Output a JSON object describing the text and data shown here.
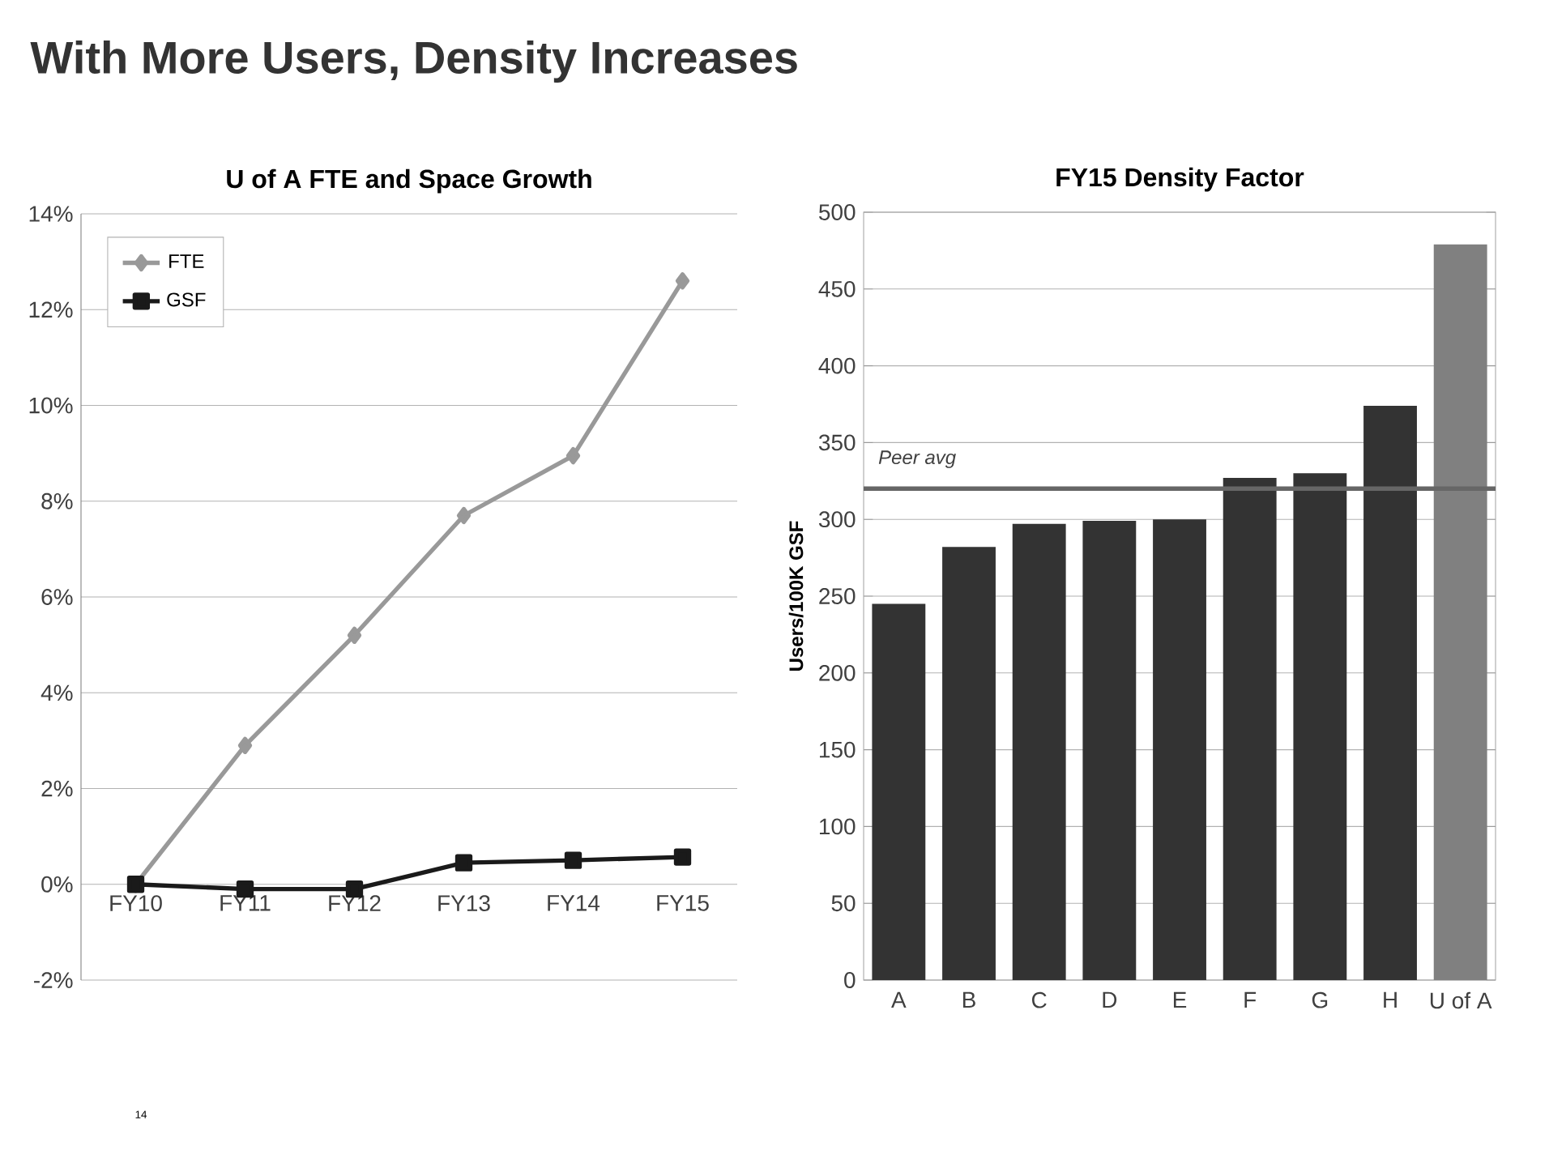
{
  "chart_data": [
    {
      "type": "other",
      "title": "With More Users, Density Increases",
      "annotations": [
        "14"
      ]
    },
    {
      "type": "line",
      "title": "U of A FTE and Space Growth",
      "categories": [
        "FY10",
        "FY11",
        "FY12",
        "FY13",
        "FY14",
        "FY15"
      ],
      "series": [
        {
          "name": "FTE",
          "color": "#999999",
          "marker": "diamond",
          "values": [
            0,
            2.9,
            5.2,
            7.7,
            8.95,
            12.6
          ]
        },
        {
          "name": "GSF",
          "color": "#1a1a1a",
          "marker": "square",
          "values": [
            0,
            -0.1,
            -0.1,
            0.45,
            0.5,
            0.57
          ]
        }
      ],
      "ylim": [
        -2,
        14
      ],
      "yticks": [
        {
          "value": -2,
          "label": "-2%"
        },
        {
          "value": 0,
          "label": "0%"
        },
        {
          "value": 2,
          "label": "2%"
        },
        {
          "value": 4,
          "label": "4%"
        },
        {
          "value": 6,
          "label": "6%"
        },
        {
          "value": 8,
          "label": "8%"
        },
        {
          "value": 10,
          "label": "10%"
        },
        {
          "value": 12,
          "label": "12%"
        },
        {
          "value": 14,
          "label": "14%"
        }
      ],
      "grid": "y",
      "legend": "top left"
    },
    {
      "type": "bar",
      "title": "FY15 Density Factor",
      "ylabel": "Users/100K GSF",
      "categories": [
        "A",
        "B",
        "C",
        "D",
        "E",
        "F",
        "G",
        "H",
        "U of A"
      ],
      "values": [
        245,
        282,
        297,
        299,
        300,
        327,
        330,
        374,
        479
      ],
      "colors": [
        "#333333",
        "#333333",
        "#333333",
        "#333333",
        "#333333",
        "#333333",
        "#333333",
        "#333333",
        "#808080"
      ],
      "ylim": [
        0,
        500
      ],
      "yticks": [
        0,
        50,
        100,
        150,
        200,
        250,
        300,
        350,
        400,
        450,
        500
      ],
      "grid": "y",
      "ref_lines": [
        {
          "axis": "y",
          "value": 320,
          "label": "Peer avg",
          "color": "#666666"
        }
      ]
    }
  ]
}
